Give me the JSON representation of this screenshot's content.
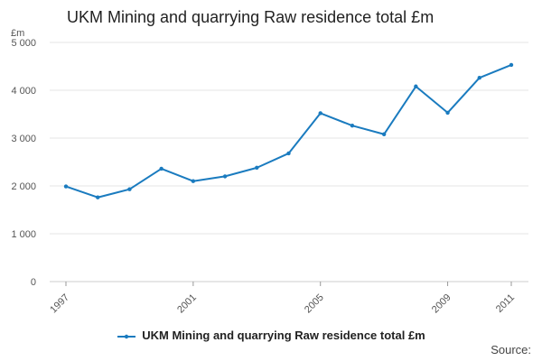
{
  "chart_data": {
    "type": "line",
    "title": "UKM Mining and quarrying Raw residence total £m",
    "ylabel": "£m",
    "xlabel": "",
    "ylim": [
      0,
      5000
    ],
    "yticks": [
      0,
      1000,
      2000,
      3000,
      4000,
      5000
    ],
    "ytick_labels": [
      "0",
      "1 000",
      "2 000",
      "3 000",
      "4 000",
      "5 000"
    ],
    "xlim": [
      1997,
      2011
    ],
    "xticks": [
      1997,
      2001,
      2005,
      2009,
      2011
    ],
    "xtick_labels": [
      "1997",
      "2001",
      "2005",
      "2009",
      "2011"
    ],
    "grid": "horizontal",
    "legend_position": "bottom",
    "series": [
      {
        "name": "UKM Mining and quarrying Raw residence total £m",
        "color": "#1a7bbf",
        "x": [
          1997,
          1998,
          1999,
          2000,
          2001,
          2002,
          2003,
          2004,
          2005,
          2006,
          2007,
          2008,
          2009,
          2010,
          2011
        ],
        "values": [
          1990,
          1760,
          1930,
          2360,
          2100,
          2200,
          2380,
          2680,
          3520,
          3260,
          3080,
          4080,
          3530,
          4260,
          4530
        ]
      }
    ]
  },
  "source_label": "Source:"
}
